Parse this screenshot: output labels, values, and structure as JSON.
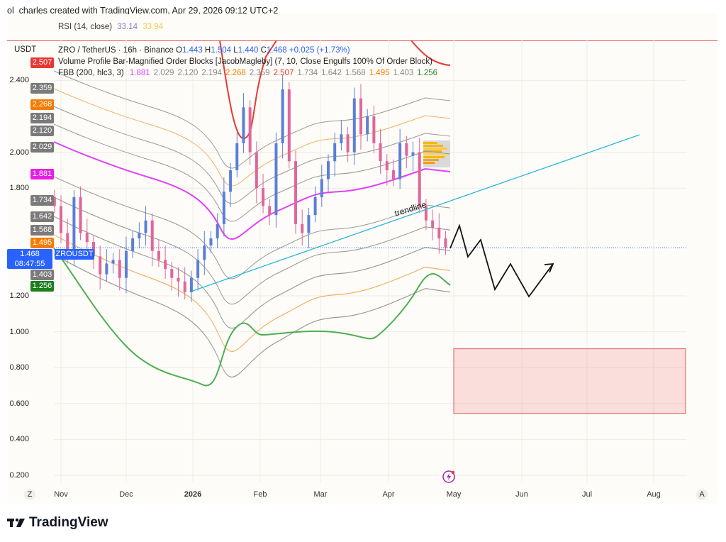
{
  "credit": "ol_charles created with TradingView.com, Apr 29, 2026 09:12 UTC+2",
  "rsi": {
    "label": "RSI (14, close)",
    "value1": "33.14",
    "value2": "33.94",
    "color1": "#7e57c2",
    "color2": "#f7c948"
  },
  "currency": "USDT",
  "symbol_legend": {
    "pair": "ZRO / TetherUS · 16h · Binance",
    "o_label": "O",
    "o": "1.443",
    "h_label": "H",
    "h": "1.504",
    "l_label": "L",
    "l": "1.440",
    "c_label": "C",
    "c": "1.468",
    "change": "+0.025 (+1.73%)"
  },
  "indicator_orderblocks": "Volume Profile Bar-Magnified Order Blocks [JacobMagleby] (7, 10, Close Engulfs 100% Of Order Block)",
  "indicator_fbb": {
    "label": "FBB (200, hlc3, 3)",
    "values": [
      {
        "v": "1.881",
        "color": "#e040fb"
      },
      {
        "v": "2.029",
        "color": "#888"
      },
      {
        "v": "2.120",
        "color": "#888"
      },
      {
        "v": "2.194",
        "color": "#888"
      },
      {
        "v": "2.268",
        "color": "#f57c00"
      },
      {
        "v": "2.359",
        "color": "#888"
      },
      {
        "v": "2.507",
        "color": "#e53935"
      },
      {
        "v": "1.734",
        "color": "#888"
      },
      {
        "v": "1.642",
        "color": "#888"
      },
      {
        "v": "1.568",
        "color": "#888"
      },
      {
        "v": "1.495",
        "color": "#f57c00"
      },
      {
        "v": "1.403",
        "color": "#888"
      },
      {
        "v": "1.256",
        "color": "#2e7d32"
      }
    ]
  },
  "price_axis": [
    "2.400",
    "2.000",
    "1.800",
    "1.200",
    "1.000",
    "0.800",
    "0.600",
    "0.400",
    "0.200"
  ],
  "price_labels": [
    {
      "text": "2.507",
      "color": "#e53935"
    },
    {
      "text": "2.359",
      "color": "#7a7a7a"
    },
    {
      "text": "2.268",
      "color": "#f57c00"
    },
    {
      "text": "2.194",
      "color": "#7a7a7a"
    },
    {
      "text": "2.120",
      "color": "#7a7a7a"
    },
    {
      "text": "2.029",
      "color": "#7a7a7a"
    },
    {
      "text": "1.881",
      "color": "#e91ee6"
    },
    {
      "text": "1.734",
      "color": "#7a7a7a"
    },
    {
      "text": "1.642",
      "color": "#7a7a7a"
    },
    {
      "text": "1.568",
      "color": "#7a7a7a"
    },
    {
      "text": "1.495",
      "color": "#f57c00"
    },
    {
      "text": "1.403",
      "color": "#7a7a7a"
    },
    {
      "text": "1.256",
      "color": "#1b7f1b"
    }
  ],
  "last_price": {
    "price": "1.468",
    "countdown": "08:47:55",
    "symbol": "ZROUSDT",
    "color": "#2962ff"
  },
  "time_axis": [
    "Nov",
    "Dec",
    "2026",
    "Feb",
    "Mar",
    "Apr",
    "May",
    "Jun",
    "Jul",
    "Aug"
  ],
  "axis_buttons": {
    "left": "Z",
    "right": "A"
  },
  "annotation": "trendline",
  "brand": "TradingView",
  "chart_data": {
    "type": "candlestick",
    "dates": [
      "2025-10-29",
      "2025-11-01",
      "2025-11-04",
      "2025-11-07",
      "2025-11-10",
      "2025-11-13",
      "2025-11-16",
      "2025-11-19",
      "2025-11-22",
      "2025-11-25",
      "2025-11-28",
      "2025-12-01",
      "2025-12-04",
      "2025-12-07",
      "2025-12-10",
      "2025-12-13",
      "2025-12-16",
      "2025-12-19",
      "2025-12-22",
      "2025-12-25",
      "2025-12-28",
      "2025-12-31",
      "2026-01-03",
      "2026-01-06",
      "2026-01-09",
      "2026-01-12",
      "2026-01-15",
      "2026-01-18",
      "2026-01-21",
      "2026-01-24",
      "2026-01-27",
      "2026-01-30",
      "2026-02-02",
      "2026-02-05",
      "2026-02-08",
      "2026-02-11",
      "2026-02-14",
      "2026-02-17",
      "2026-02-20",
      "2026-02-23",
      "2026-02-26",
      "2026-03-01",
      "2026-03-04",
      "2026-03-07",
      "2026-03-10",
      "2026-03-13",
      "2026-03-16",
      "2026-03-19",
      "2026-03-22",
      "2026-03-25",
      "2026-03-28",
      "2026-03-31",
      "2026-04-03",
      "2026-04-06",
      "2026-04-09",
      "2026-04-12",
      "2026-04-15",
      "2026-04-18",
      "2026-04-21",
      "2026-04-24",
      "2026-04-27"
    ],
    "close": [
      1.7,
      1.55,
      1.45,
      1.75,
      1.55,
      1.5,
      1.42,
      1.32,
      1.38,
      1.4,
      1.3,
      1.45,
      1.52,
      1.55,
      1.62,
      1.45,
      1.4,
      1.35,
      1.3,
      1.28,
      1.22,
      1.3,
      1.4,
      1.48,
      1.52,
      1.6,
      1.78,
      1.9,
      2.05,
      2.25,
      2.0,
      1.8,
      1.7,
      1.65,
      2.05,
      2.35,
      1.95,
      1.6,
      1.55,
      1.65,
      1.75,
      1.85,
      1.95,
      2.05,
      2.1,
      2.0,
      2.3,
      2.1,
      2.2,
      2.05,
      1.95,
      1.9,
      1.85,
      2.05,
      1.98,
      2.0,
      1.7,
      1.62,
      1.58,
      1.52,
      1.468
    ],
    "ylim": [
      0.2,
      2.45
    ],
    "up_color": "#5b7fd6",
    "down_color": "#e0669a",
    "order_block_zone": [
      0.545,
      0.905
    ],
    "order_block_color": "#e05a5a",
    "trendline_color": "#29b6d8"
  }
}
